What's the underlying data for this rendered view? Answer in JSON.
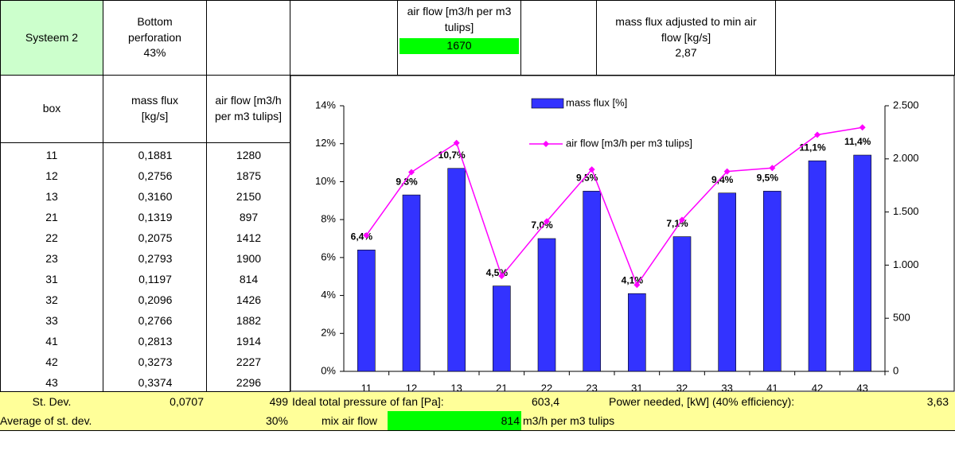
{
  "header": {
    "system": "Systeem 2",
    "perforation_label": "Bottom perforation",
    "perforation": "43%",
    "airflow_label": "air flow [m3/h per m3 tulips]",
    "airflow": "1670",
    "massflux_label": "mass flux adjusted to min air flow [kg/s]",
    "massflux": "2,87"
  },
  "table": {
    "columns": [
      "box",
      "mass flux [kg/s]",
      "air flow [m3/h per m3 tulips]"
    ],
    "rows": [
      [
        "11",
        "0,1881",
        "1280"
      ],
      [
        "12",
        "0,2756",
        "1875"
      ],
      [
        "13",
        "0,3160",
        "2150"
      ],
      [
        "21",
        "0,1319",
        "897"
      ],
      [
        "22",
        "0,2075",
        "1412"
      ],
      [
        "23",
        "0,2793",
        "1900"
      ],
      [
        "31",
        "0,1197",
        "814"
      ],
      [
        "32",
        "0,2096",
        "1426"
      ],
      [
        "33",
        "0,2766",
        "1882"
      ],
      [
        "41",
        "0,2813",
        "1914"
      ],
      [
        "42",
        "0,3273",
        "2227"
      ],
      [
        "43",
        "0,3374",
        "2296"
      ]
    ]
  },
  "footer": {
    "stdev_label": "St. Dev.",
    "stdev_mass": "0,0707",
    "stdev_air": "499",
    "pressure_label": "Ideal total pressure of fan [Pa]:",
    "pressure": "603,4",
    "power_label": "Power needed, [kW] (40% efficiency):",
    "power": "3,63",
    "avg_label": "Average of st. dev.",
    "avg": "30%",
    "mix_label": "mix air flow",
    "mix": "814",
    "mix_unit": "m3/h per m3 tulips"
  },
  "chart_data": {
    "type": "bar",
    "categories": [
      "11",
      "12",
      "13",
      "21",
      "22",
      "23",
      "31",
      "32",
      "33",
      "41",
      "42",
      "43"
    ],
    "series": [
      {
        "name": "mass flux [%]",
        "color": "#3333ff",
        "values": [
          6.4,
          9.3,
          10.7,
          4.5,
          7.0,
          9.5,
          4.1,
          7.1,
          9.4,
          9.5,
          11.1,
          11.4
        ],
        "value_labels": [
          "6,4%",
          "9,3%",
          "10,7%",
          "4,5%",
          "7,0%",
          "9,5%",
          "4,1%",
          "7,1%",
          "9,4%",
          "9,5%",
          "11,1%",
          "11,4%"
        ]
      },
      {
        "name": "air flow [m3/h per m3 tulips]",
        "type": "line",
        "axis": "y2",
        "color": "#ff00ff",
        "values": [
          1280,
          1875,
          2150,
          897,
          1412,
          1900,
          814,
          1426,
          1882,
          1914,
          2227,
          2296
        ]
      }
    ],
    "ylim": [
      0,
      14
    ],
    "yticks": [
      {
        "value": 0,
        "label": "0%"
      },
      {
        "value": 2,
        "label": "2%"
      },
      {
        "value": 4,
        "label": "4%"
      },
      {
        "value": 6,
        "label": "6%"
      },
      {
        "value": 8,
        "label": "8%"
      },
      {
        "value": 10,
        "label": "10%"
      },
      {
        "value": 12,
        "label": "12%"
      },
      {
        "value": 14,
        "label": "14%"
      }
    ],
    "y2lim": [
      0,
      2500
    ],
    "y2ticks": [
      0,
      500,
      {
        "value": 1000,
        "label": "1.000"
      },
      {
        "value": 1500,
        "label": "1.500"
      },
      {
        "value": 2000,
        "label": "2.000"
      },
      {
        "value": 2500,
        "label": "2.500"
      }
    ],
    "grid": false
  }
}
